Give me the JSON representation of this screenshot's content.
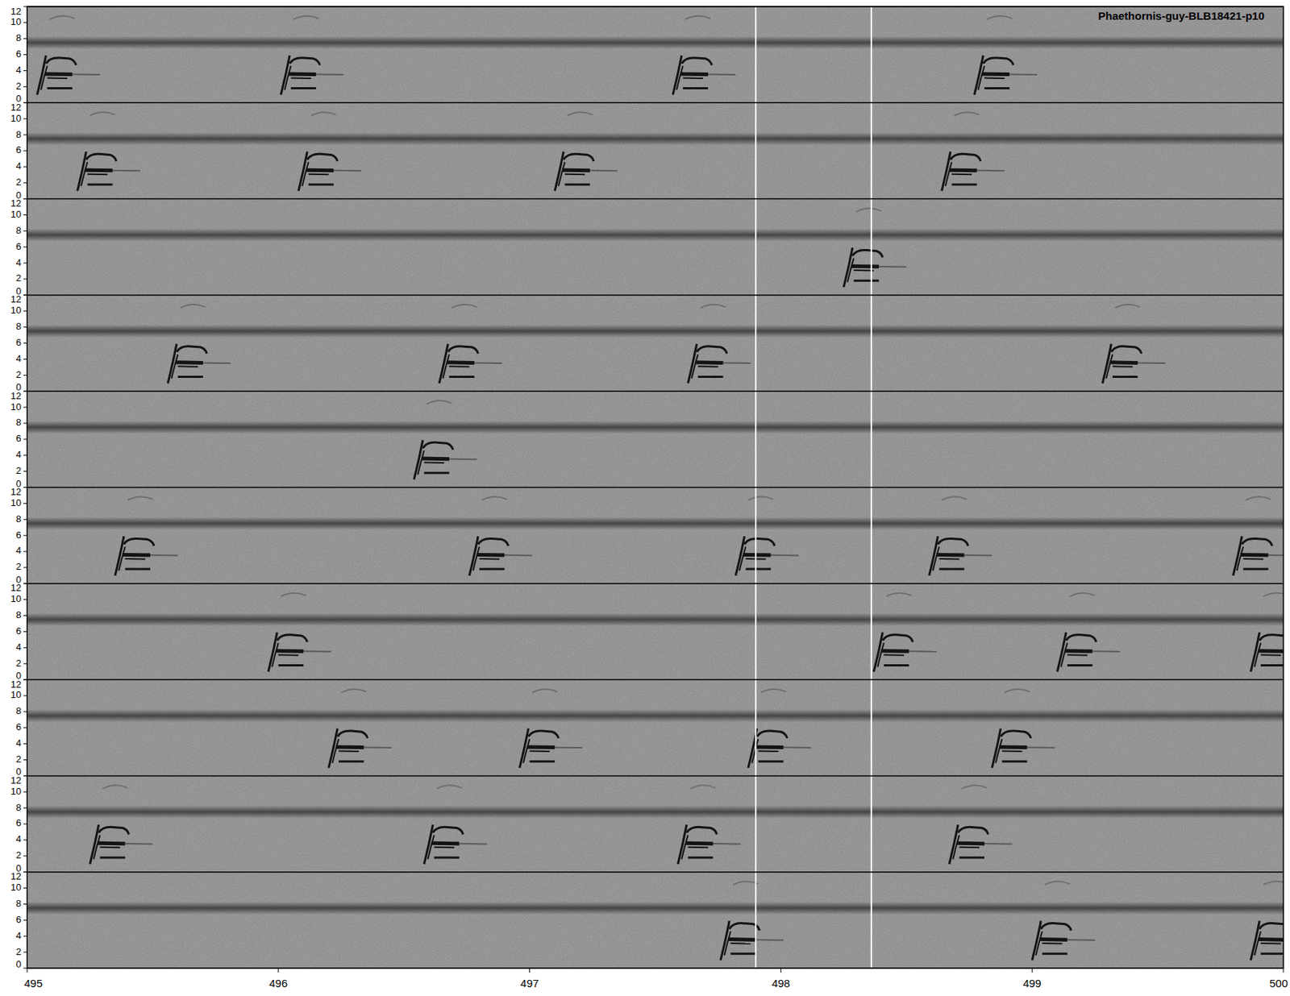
{
  "chart_data": {
    "type": "spectrogram",
    "title": "Phaethornis-guy-BLB18421-p10",
    "xlim": [
      495,
      500
    ],
    "xticks": [
      495,
      496,
      497,
      498,
      499,
      500
    ],
    "ylim": [
      0,
      12
    ],
    "yticks": [
      0,
      2,
      4,
      6,
      8,
      10,
      12
    ],
    "noise_band": 7.5,
    "markers": [
      497.9,
      498.36
    ],
    "rows": [
      {
        "calls": [
          495.04,
          496.01,
          497.57,
          498.77
        ]
      },
      {
        "calls": [
          495.2,
          496.08,
          497.1,
          498.64
        ]
      },
      {
        "calls": [
          498.25
        ]
      },
      {
        "calls": [
          495.56,
          496.64,
          497.63,
          499.28
        ]
      },
      {
        "calls": [
          496.54
        ]
      },
      {
        "calls": [
          495.35,
          496.76,
          497.82,
          498.59,
          499.8
        ]
      },
      {
        "calls": [
          495.96,
          498.37,
          499.1,
          499.87
        ]
      },
      {
        "calls": [
          496.2,
          496.96,
          497.87,
          498.84
        ]
      },
      {
        "calls": [
          495.25,
          496.58,
          497.59,
          498.67
        ]
      },
      {
        "calls": [
          497.76,
          499.0,
          499.87
        ]
      }
    ]
  }
}
